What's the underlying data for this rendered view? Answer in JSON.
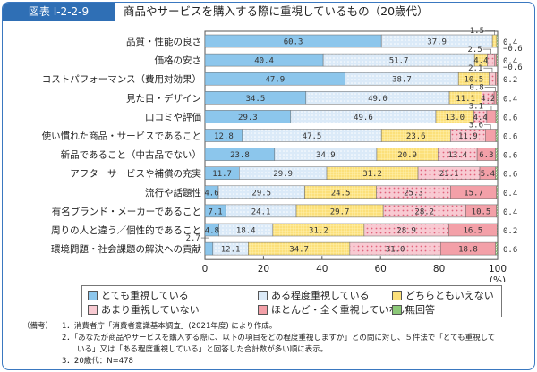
{
  "header": {
    "figure_no": "図表 I-2-2-9",
    "title": "商品やサービスを購入する際に重視しているもの（20歳代）"
  },
  "chart_data": {
    "type": "bar",
    "orientation": "horizontal",
    "stacked": true,
    "categories": [
      "品質・性能の良さ",
      "価格の安さ",
      "コストパフォーマンス（費用対効果）",
      "見た目・デザイン",
      "口コミや評価",
      "使い慣れた商品・サービスであること",
      "新品であること（中古品でない）",
      "アフターサービスや補償の充実",
      "流行や話題性",
      "有名ブランド・メーカーであること",
      "周りの人と違う／個性的であること",
      "環境問題・社会課題の解決への貢献"
    ],
    "series": [
      {
        "name": "とても重視している",
        "color": "#8cc6ec",
        "values": [
          60.3,
          40.4,
          47.9,
          34.5,
          29.3,
          12.8,
          23.8,
          11.7,
          4.6,
          7.1,
          4.8,
          2.7
        ]
      },
      {
        "name": "ある程度重視している",
        "color": "#dbeaf8",
        "values": [
          37.9,
          51.7,
          38.7,
          49.0,
          49.6,
          47.5,
          34.9,
          29.9,
          29.5,
          24.1,
          18.4,
          12.1
        ]
      },
      {
        "name": "どちらともいえない",
        "color": "#fce07a",
        "values": [
          1.5,
          4.4,
          10.5,
          11.1,
          13.0,
          23.6,
          20.9,
          31.2,
          24.5,
          29.7,
          31.2,
          34.7
        ]
      },
      {
        "name": "あまり重視していない",
        "color": "#f8cad2",
        "values": [
          0,
          2.5,
          2.1,
          4.2,
          4.4,
          11.9,
          13.4,
          21.1,
          25.3,
          28.2,
          28.9,
          31.0
        ]
      },
      {
        "name": "ほとんど・全く重視していない",
        "color": "#f3a0a8",
        "values": [
          0,
          0.6,
          0.6,
          0.8,
          3.1,
          3.6,
          6.3,
          5.4,
          15.7,
          10.5,
          16.5,
          18.8
        ]
      },
      {
        "name": "無回答",
        "color": "#8cc878",
        "values": [
          0.4,
          0.4,
          0.2,
          0.4,
          0.6,
          0.6,
          0.6,
          0.6,
          0.4,
          0.4,
          0.2,
          0.6
        ]
      }
    ],
    "xlim": [
      0,
      100
    ],
    "xticks": [
      "0",
      "20",
      "40",
      "60",
      "80",
      "100"
    ],
    "xunit": "(%)",
    "legend": "bottom"
  },
  "notes": {
    "label": "（備考）",
    "items": [
      "1．消費者庁「消費者意識基本調査」(2021年度) により作成。",
      "2．「あなたが商品やサービスを購入する際に、以下の項目をどの程度重視しますか」との問に対し、５件法で「とても重視して",
      "　　いる」又は「ある程度重視している」と回答した合計数が多い順に表示。",
      "3．20歳代：N=478"
    ]
  }
}
